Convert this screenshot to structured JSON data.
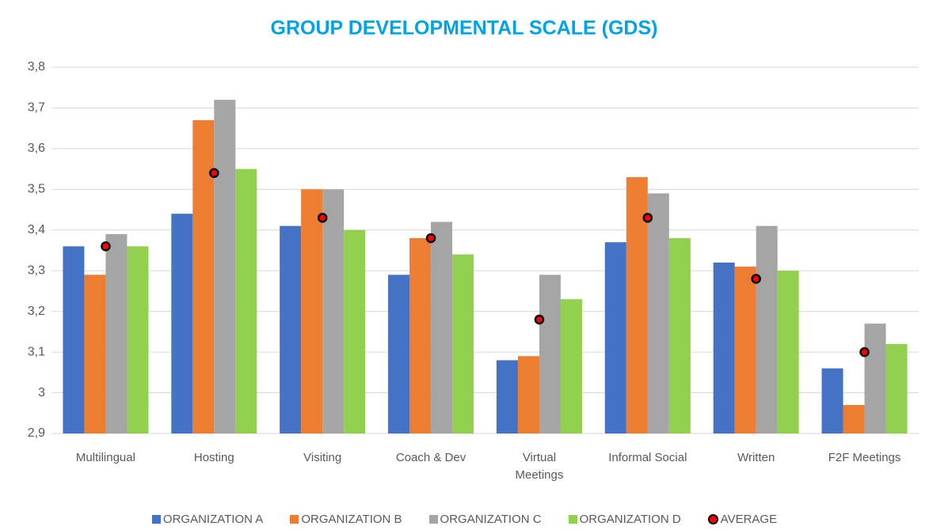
{
  "chart_data": {
    "type": "bar",
    "title": "GROUP DEVELOPMENTAL SCALE (GDS)",
    "categories": [
      "Multilingual",
      "Hosting",
      "Visiting",
      "Coach & Dev",
      "Virtual Meetings",
      "Informal Social",
      "Written",
      "F2F Meetings"
    ],
    "series": [
      {
        "name": "ORGANIZATION A",
        "color": "#4472c4",
        "values": [
          3.36,
          3.44,
          3.41,
          3.29,
          3.08,
          3.37,
          3.32,
          3.06
        ]
      },
      {
        "name": "ORGANIZATION B",
        "color": "#ed7d31",
        "values": [
          3.29,
          3.67,
          3.5,
          3.38,
          3.09,
          3.53,
          3.31,
          2.97
        ]
      },
      {
        "name": "ORGANIZATION C",
        "color": "#a5a5a5",
        "values": [
          3.39,
          3.72,
          3.5,
          3.42,
          3.29,
          3.49,
          3.41,
          3.17
        ]
      },
      {
        "name": "ORGANIZATION D",
        "color": "#92d050",
        "values": [
          3.36,
          3.55,
          3.4,
          3.34,
          3.23,
          3.38,
          3.3,
          3.12
        ]
      },
      {
        "name": "AVERAGE",
        "color": "#ff0000",
        "style": "dot",
        "values": [
          3.36,
          3.54,
          3.43,
          3.38,
          3.18,
          3.43,
          3.28,
          3.1
        ]
      }
    ],
    "ylim": [
      2.9,
      3.8
    ],
    "yticks": [
      {
        "value": 2.9,
        "label": "2,9"
      },
      3,
      {
        "value": 3.1,
        "label": "3,1"
      },
      {
        "value": 3.2,
        "label": "3,2"
      },
      {
        "value": 3.3,
        "label": "3,3"
      },
      {
        "value": 3.4,
        "label": "3,4"
      },
      {
        "value": 3.5,
        "label": "3,5"
      },
      {
        "value": 3.6,
        "label": "3,6"
      },
      {
        "value": 3.7,
        "label": "3,7"
      },
      {
        "value": 3.8,
        "label": "3,8"
      }
    ],
    "grid": true,
    "legend": "bottom"
  }
}
